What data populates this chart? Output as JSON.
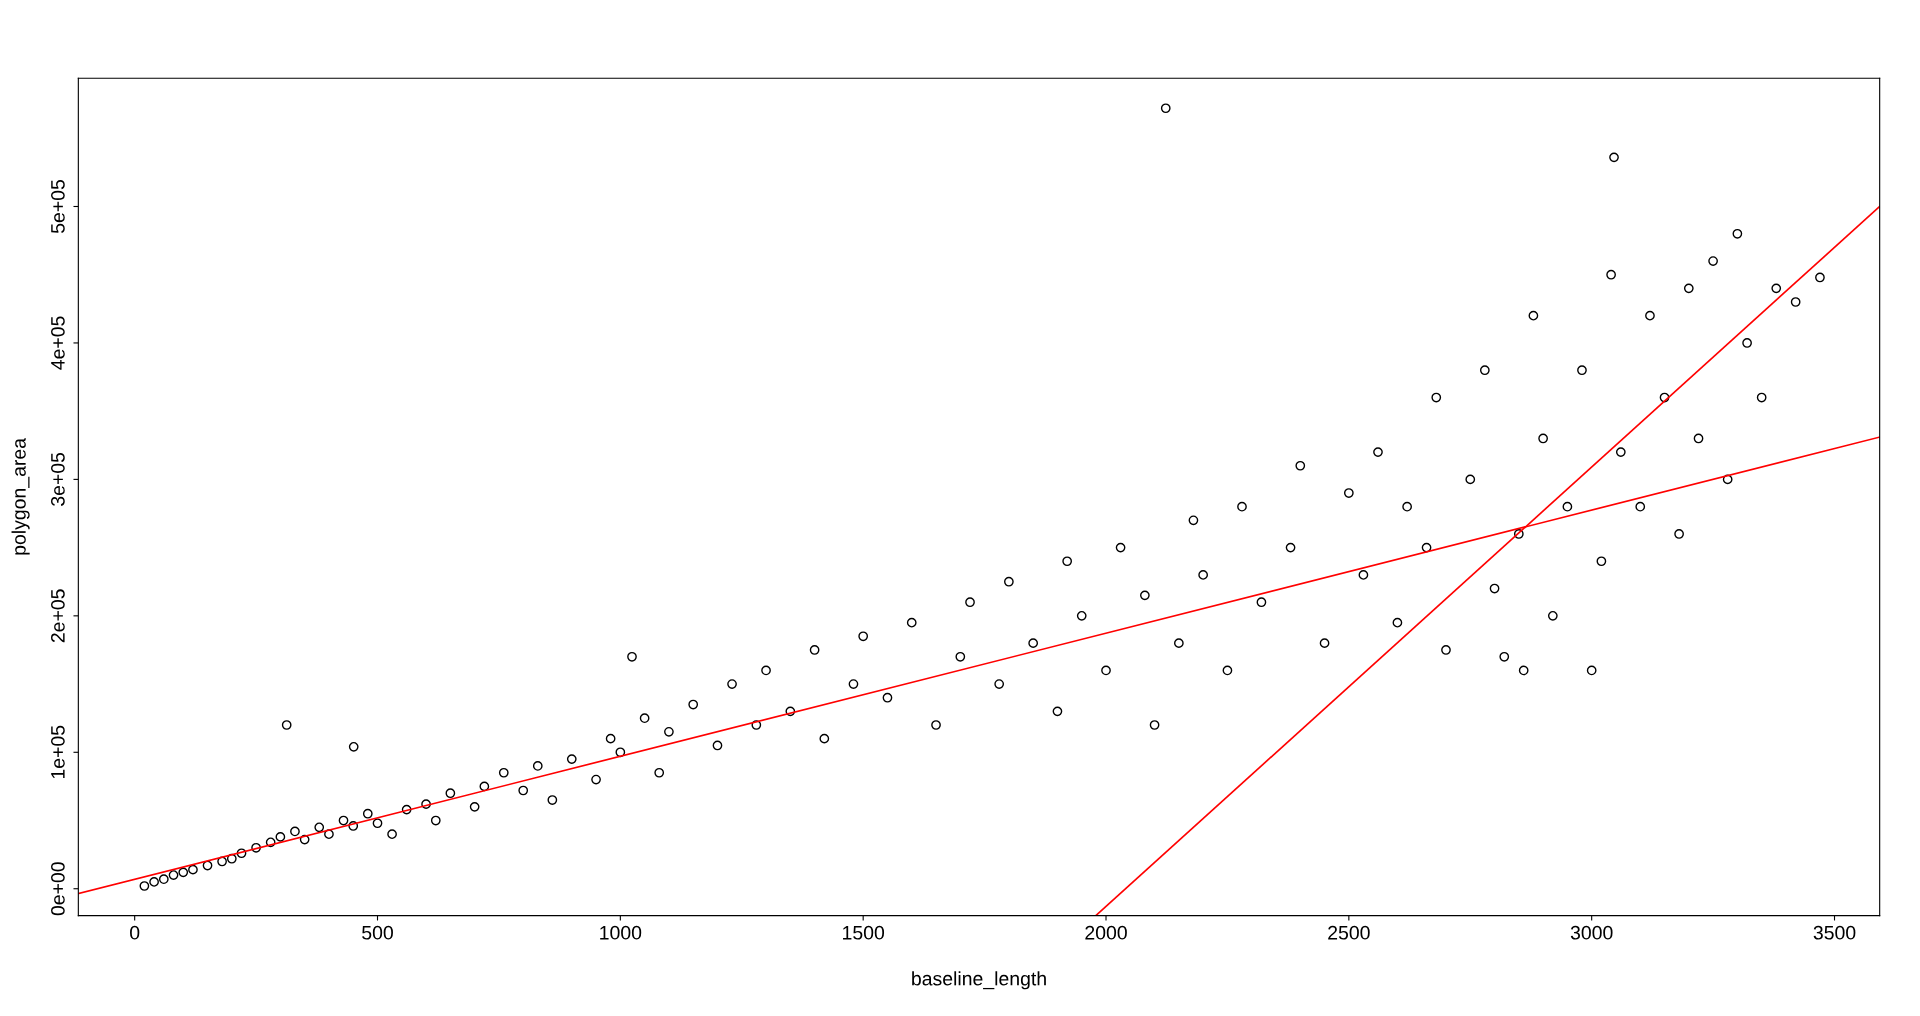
{
  "chart_data": {
    "type": "scatter",
    "xlabel": "baseline_length",
    "ylabel": "polygon_area",
    "xlim": [
      -116,
      3593
    ],
    "ylim": [
      -19700,
      594000
    ],
    "xticks": [
      0,
      500,
      1000,
      1500,
      2000,
      2500,
      3000,
      3500
    ],
    "yticks": [
      {
        "value": 0,
        "label": "0e+00"
      },
      {
        "value": 100000,
        "label": "1e+05"
      },
      {
        "value": 200000,
        "label": "2e+05"
      },
      {
        "value": 300000,
        "label": "3e+05"
      },
      {
        "value": 400000,
        "label": "4e+05"
      },
      {
        "value": 500000,
        "label": "5e+05"
      }
    ],
    "grid": false,
    "legend": false,
    "series": [
      {
        "color": "#000000",
        "marker": "circle",
        "x": [
          20,
          40,
          60,
          80,
          100,
          120,
          150,
          180,
          200,
          220,
          250,
          280,
          300,
          330,
          350,
          380,
          400,
          430,
          450,
          480,
          500,
          530,
          560,
          600,
          620,
          650,
          700,
          720,
          760,
          800,
          830,
          860,
          900,
          950,
          980,
          1000,
          1050,
          1080,
          1100,
          1150,
          1200,
          1230,
          1280,
          1300,
          1350,
          1400,
          1420,
          1480,
          1500,
          1550,
          1600,
          1650,
          1700,
          1720,
          1780,
          1800,
          1850,
          1900,
          1920,
          1950,
          2000,
          2030,
          2080,
          2100,
          2150,
          2180,
          2200,
          2250,
          2280,
          2320,
          2380,
          2400,
          2450,
          2500,
          2530,
          2560,
          2600,
          2620,
          2660,
          2680,
          2700,
          2750,
          2780,
          2800,
          2820,
          2850,
          2860,
          2880,
          2900,
          2920,
          2950,
          2980,
          3000,
          3020,
          3040,
          3060,
          3100,
          3120,
          3150,
          3180,
          3200,
          3220,
          3250,
          3280,
          3300,
          3320,
          3350,
          3380,
          3420,
          3470,
          313,
          451,
          1024,
          2123,
          3046
        ],
        "values": [
          2000,
          5000,
          7000,
          10000,
          12000,
          14000,
          17000,
          20000,
          22000,
          26000,
          30000,
          34000,
          38000,
          42000,
          36000,
          45000,
          40000,
          50000,
          46000,
          55000,
          48000,
          40000,
          58000,
          62000,
          50000,
          70000,
          60000,
          75000,
          85000,
          72000,
          90000,
          65000,
          95000,
          80000,
          110000,
          100000,
          125000,
          85000,
          115000,
          135000,
          105000,
          150000,
          120000,
          160000,
          130000,
          175000,
          110000,
          150000,
          185000,
          140000,
          195000,
          120000,
          170000,
          210000,
          150000,
          225000,
          180000,
          130000,
          240000,
          200000,
          160000,
          250000,
          215000,
          120000,
          180000,
          270000,
          230000,
          160000,
          280000,
          210000,
          250000,
          310000,
          180000,
          290000,
          230000,
          320000,
          195000,
          280000,
          250000,
          360000,
          175000,
          300000,
          380000,
          220000,
          170000,
          260000,
          160000,
          420000,
          330000,
          200000,
          280000,
          380000,
          160000,
          240000,
          450000,
          320000,
          280000,
          420000,
          360000,
          260000,
          440000,
          330000,
          460000,
          300000,
          480000,
          400000,
          360000,
          440000,
          430000,
          448000,
          120000,
          104000,
          170000,
          572000,
          536000
        ]
      },
      {
        "type": "line",
        "color": "#ff0000",
        "marker": "none",
        "line_style": "solid",
        "x": [
          -116,
          3593
        ],
        "values": [
          -3600,
          331000
        ]
      },
      {
        "type": "line",
        "color": "#ff0000",
        "marker": "none",
        "line_style": "solid",
        "x": [
          1979,
          3593
        ],
        "values": [
          -19700,
          500000
        ]
      }
    ]
  }
}
